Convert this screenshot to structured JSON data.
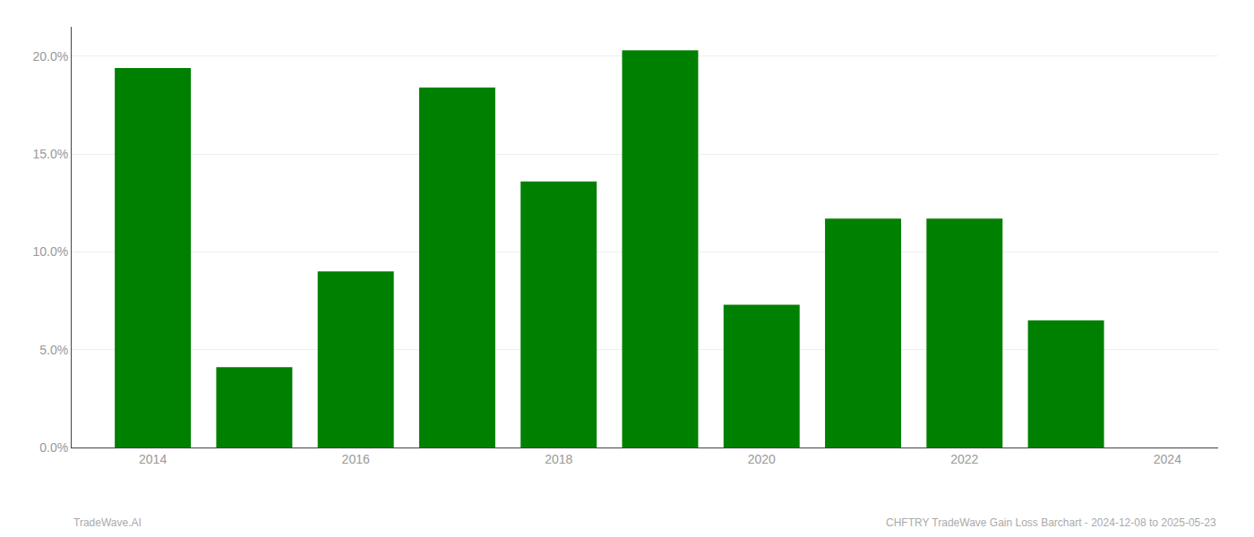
{
  "chart_data": {
    "type": "bar",
    "x": [
      2014,
      2015,
      2016,
      2017,
      2018,
      2019,
      2020,
      2021,
      2022,
      2023
    ],
    "values": [
      0.194,
      0.041,
      0.09,
      0.184,
      0.136,
      0.203,
      0.073,
      0.117,
      0.117,
      0.065
    ],
    "color": "#008000",
    "xlim": [
      2013.2,
      2024.5
    ],
    "xticks": [
      2014,
      2016,
      2018,
      2020,
      2022,
      2024
    ],
    "ylim": [
      0,
      0.215
    ],
    "yticks": [
      {
        "value": 0.0,
        "label": "0.0%"
      },
      {
        "value": 0.05,
        "label": "5.0%"
      },
      {
        "value": 0.1,
        "label": "10.0%"
      },
      {
        "value": 0.15,
        "label": "15.0%"
      },
      {
        "value": 0.2,
        "label": "20.0%"
      }
    ],
    "grid": true,
    "annotations": [
      "TradeWave.AI",
      "CHFTRY TradeWave Gain Loss Barchart - 2024-12-08 to 2025-05-23"
    ]
  }
}
